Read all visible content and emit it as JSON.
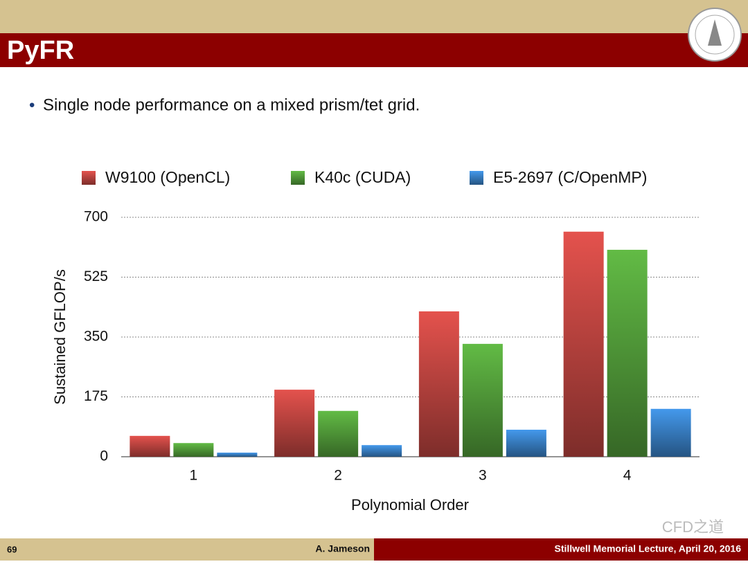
{
  "slide_title": "PyFR",
  "bullet": "Single node performance on a mixed prism/tet grid.",
  "footer": {
    "page": "69",
    "author": "A. Jameson",
    "event": "Stillwell Memorial Lecture, April 20, 2016"
  },
  "watermark": "CFD之道",
  "chart_data": {
    "type": "bar",
    "categories": [
      "1",
      "2",
      "3",
      "4"
    ],
    "series": [
      {
        "name": "W9100 (OpenCL)",
        "color": "#e4524d",
        "values": [
          61,
          196,
          425,
          658
        ]
      },
      {
        "name": "K40c (CUDA)",
        "color": "#62bb45",
        "values": [
          40,
          134,
          330,
          605
        ]
      },
      {
        "name": "E5-2697 (C/OpenMP)",
        "color": "#4499ec",
        "values": [
          12,
          34,
          79,
          140
        ]
      }
    ],
    "ylim": [
      0,
      700
    ],
    "yticks": [
      0,
      175,
      350,
      525,
      700
    ],
    "ylabel": "Sustained GFLOP/s",
    "xlabel": "Polynomial Order",
    "grid": true,
    "legend": "top"
  }
}
